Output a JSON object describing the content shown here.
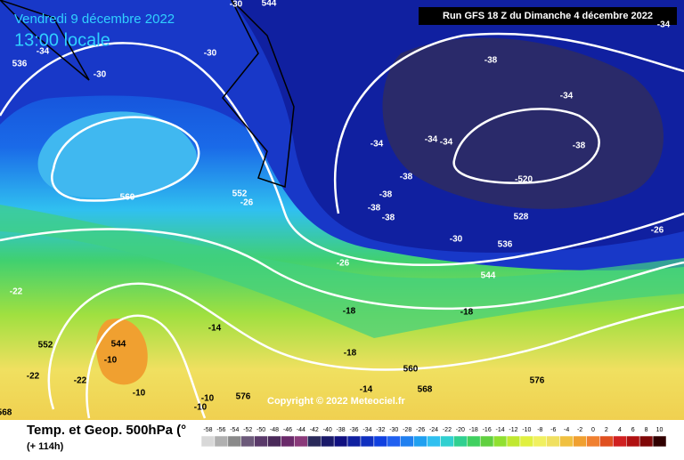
{
  "header": {
    "date": "Vendredi 9 décembre 2022",
    "time": "13:00 locale",
    "run": "Run GFS 18 Z du Dimanche 4 décembre 2022"
  },
  "copyright": "Copyright © 2022 Meteociel.fr",
  "footer": {
    "title": "Temp. et Geop. 500hPa (°",
    "lead": "(+ 114h)"
  },
  "map_labels": [
    "-30",
    "544",
    "-34",
    "536",
    "-34",
    "-30",
    "-30",
    "-38",
    "-34",
    "-34",
    "-34",
    "-34",
    "-38",
    "-38",
    "-520",
    "-38",
    "-38",
    "-38",
    "528",
    "560",
    "552",
    "-26",
    "-30",
    "536",
    "-26",
    "-26",
    "544",
    "-22",
    "-18",
    "-18",
    "552",
    "544",
    "-10",
    "-14",
    "-18",
    "-22",
    "-22",
    "560",
    "-10",
    "-14",
    "568",
    "576",
    "576",
    "-10",
    "-10",
    "568"
  ],
  "legend": {
    "labels": [
      "-58",
      "-56",
      "-54",
      "-52",
      "-50",
      "-48",
      "-46",
      "-44",
      "-42",
      "-40",
      "-38",
      "-36",
      "-34",
      "-32",
      "-30",
      "-28",
      "-26",
      "-24",
      "-22",
      "-20",
      "-18",
      "-16",
      "-14",
      "-12",
      "-10",
      "-8",
      "-6",
      "-4",
      "-2",
      "0",
      "2",
      "4",
      "6",
      "8",
      "10"
    ],
    "colors": [
      "#d8d8d8",
      "#b0b0b0",
      "#8a8a8a",
      "#6c5a7a",
      "#5a3a6a",
      "#4a2a5a",
      "#6a2a6a",
      "#8a3a7a",
      "#2a2a5a",
      "#1a1a6a",
      "#101080",
      "#1020a0",
      "#1030c0",
      "#1040e0",
      "#2060f0",
      "#2080f0",
      "#20a0f0",
      "#30c0f0",
      "#30d0d0",
      "#30d090",
      "#40d060",
      "#60d040",
      "#90e030",
      "#c0e830",
      "#e0f040",
      "#f0f060",
      "#f0e060",
      "#f0c040",
      "#f0a030",
      "#f08030",
      "#e05020",
      "#d02020",
      "#b01010",
      "#800808",
      "#300000"
    ]
  }
}
